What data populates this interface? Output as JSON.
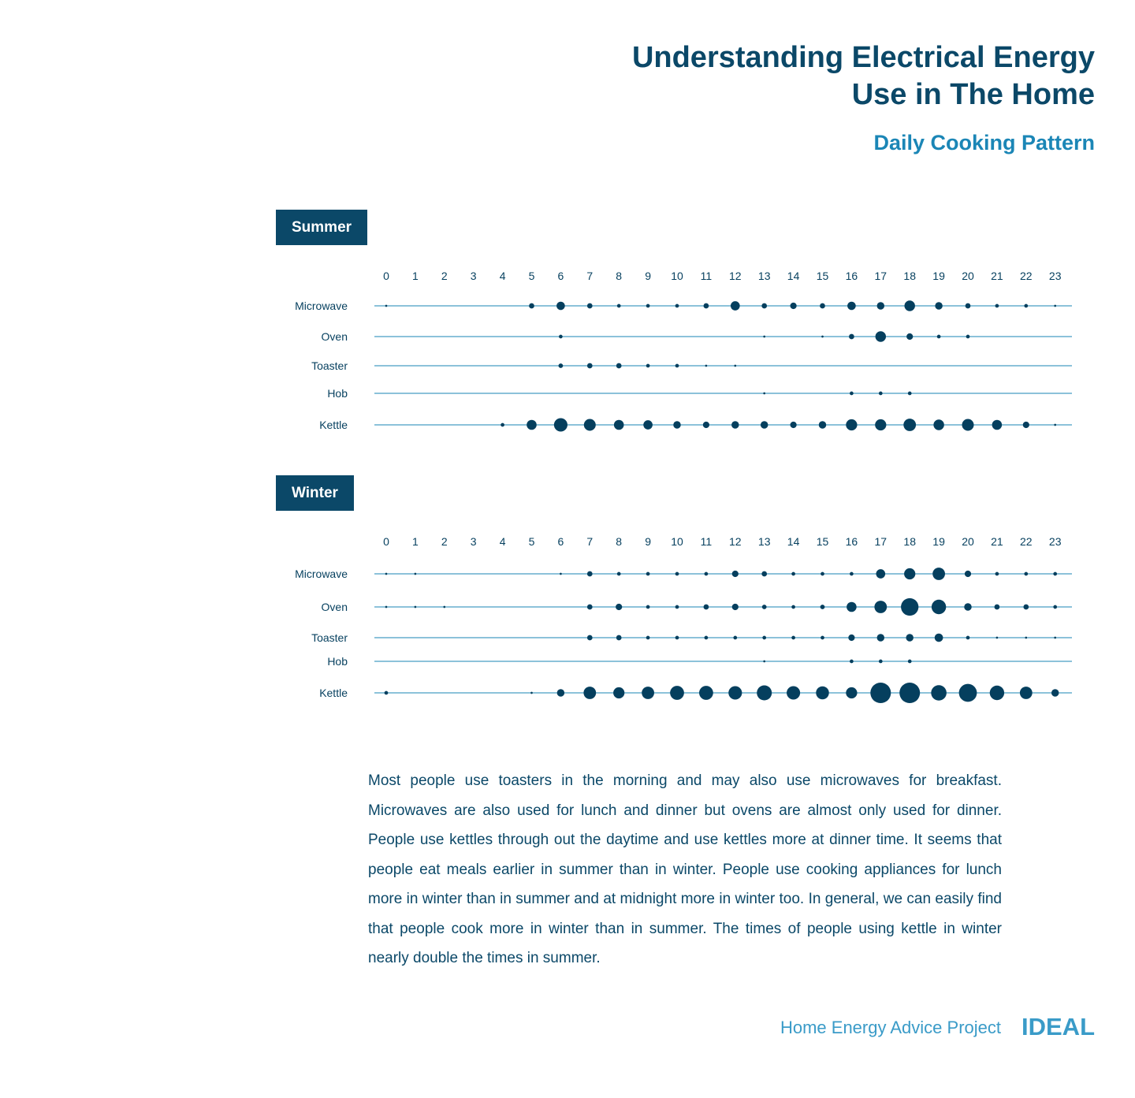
{
  "header": {
    "title_line1": "Understanding Electrical Energy",
    "title_line2": "Use in The Home",
    "subtitle": "Daily Cooking Pattern"
  },
  "colors": {
    "dot": "#053f5e",
    "line": "#1a86b5",
    "tag": "#0b4868",
    "accent": "#1b86b6",
    "footer": "#3a9bc8"
  },
  "chart_data": [
    {
      "type": "scatter",
      "label": "Summer",
      "x": [
        0,
        1,
        2,
        3,
        4,
        5,
        6,
        7,
        8,
        9,
        10,
        11,
        12,
        13,
        14,
        15,
        16,
        17,
        18,
        19,
        20,
        21,
        22,
        23
      ],
      "series": [
        {
          "name": "Microwave",
          "values": [
            0.5,
            0,
            0,
            0,
            0,
            2,
            5,
            2,
            1,
            1,
            1,
            2,
            6,
            2,
            3,
            2,
            5,
            4,
            8,
            4,
            2,
            1,
            1,
            0.5
          ]
        },
        {
          "name": "Oven",
          "values": [
            0,
            0,
            0,
            0,
            0,
            0,
            1,
            0,
            0,
            0,
            0,
            0,
            0,
            0.5,
            0,
            0.5,
            2,
            8,
            3,
            1,
            1,
            0,
            0,
            0
          ]
        },
        {
          "name": "Toaster",
          "values": [
            0,
            0,
            0,
            0,
            0,
            0,
            1.5,
            2,
            2,
            1,
            1,
            0.5,
            0.5,
            0,
            0,
            0,
            0,
            0,
            0,
            0,
            0,
            0,
            0,
            0
          ]
        },
        {
          "name": "Hob",
          "values": [
            0,
            0,
            0,
            0,
            0,
            0,
            0,
            0,
            0,
            0,
            0,
            0,
            0,
            0.5,
            0,
            0,
            1,
            1,
            1,
            0,
            0,
            0,
            0,
            0
          ]
        },
        {
          "name": "Kettle",
          "values": [
            0,
            0,
            0,
            0,
            1,
            7,
            13,
            10,
            7,
            6,
            4,
            3,
            4,
            4,
            3,
            4,
            9,
            9,
            11,
            8,
            10,
            7,
            3,
            0.5
          ]
        }
      ]
    },
    {
      "type": "scatter",
      "label": "Winter",
      "x": [
        0,
        1,
        2,
        3,
        4,
        5,
        6,
        7,
        8,
        9,
        10,
        11,
        12,
        13,
        14,
        15,
        16,
        17,
        18,
        19,
        20,
        21,
        22,
        23
      ],
      "series": [
        {
          "name": "Microwave",
          "values": [
            0.5,
            0.5,
            0,
            0,
            0,
            0,
            0.5,
            2,
            1,
            1,
            1,
            1,
            3,
            2,
            1,
            1,
            1,
            6,
            9,
            11,
            3,
            1,
            1,
            1
          ]
        },
        {
          "name": "Oven",
          "values": [
            0.5,
            0.5,
            0.5,
            0,
            0,
            0,
            0,
            2,
            3,
            1,
            1,
            2,
            3,
            1.5,
            1,
            1.5,
            7,
            11,
            22,
            15,
            4,
            2,
            2,
            1
          ]
        },
        {
          "name": "Toaster",
          "values": [
            0,
            0,
            0,
            0,
            0,
            0,
            0,
            2,
            2,
            1,
            1,
            1,
            1,
            1,
            1,
            1,
            3,
            4,
            4,
            5,
            1,
            0.5,
            0.5,
            0.5
          ]
        },
        {
          "name": "Hob",
          "values": [
            0,
            0,
            0,
            0,
            0,
            0,
            0,
            0,
            0,
            0,
            0,
            0,
            0,
            0.5,
            0,
            0,
            1,
            1,
            1,
            0,
            0,
            0,
            0,
            0
          ]
        },
        {
          "name": "Kettle",
          "values": [
            1,
            0,
            0,
            0,
            0,
            0.5,
            4,
            11,
            9,
            11,
            14,
            14,
            13,
            16,
            13,
            12,
            9,
            30,
            30,
            17,
            23,
            15,
            11,
            4
          ]
        }
      ]
    }
  ],
  "description": "Most people use toasters in the morning and may also use microwaves for breakfast. Microwaves are also used for lunch and dinner but ovens are almost only used for dinner. People use kettles through out the daytime and use kettles more at dinner time. It seems that people eat meals earlier in summer than in winter. People use cooking appliances for lunch more in winter than in summer and at midnight more in winter too. In general, we can easily find that people cook more in winter than in summer. The times of people using kettle in winter nearly double the times in summer.",
  "footer": {
    "project": "Home Energy Advice Project",
    "logo": "IDEAL"
  }
}
